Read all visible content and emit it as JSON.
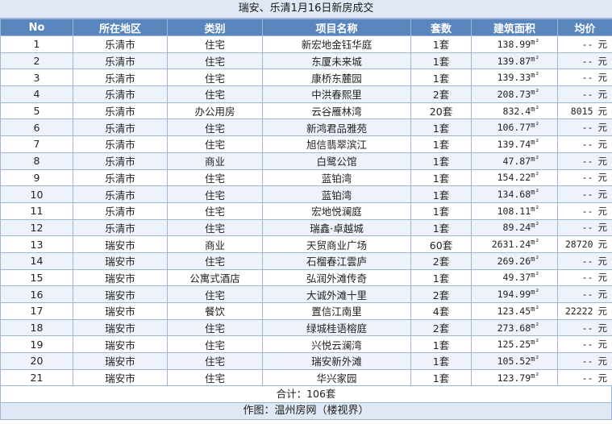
{
  "title": "瑞安、乐清1月16日新房成交",
  "headers": [
    "No",
    "所在地区",
    "类别",
    "项目名称",
    "套数",
    "建筑面积",
    "均价"
  ],
  "area_unit": "m²",
  "price_unit": "元",
  "rows": [
    {
      "no": "1",
      "region": "乐清市",
      "type": "住宅",
      "project": "新宏地金钰华庭",
      "units": "1套",
      "area": "138.99",
      "price": "--"
    },
    {
      "no": "2",
      "region": "乐清市",
      "type": "住宅",
      "project": "东厦未来城",
      "units": "1套",
      "area": "139.87",
      "price": "--"
    },
    {
      "no": "3",
      "region": "乐清市",
      "type": "住宅",
      "project": "康桥东麓园",
      "units": "1套",
      "area": "139.33",
      "price": "--"
    },
    {
      "no": "4",
      "region": "乐清市",
      "type": "住宅",
      "project": "中洪春熙里",
      "units": "2套",
      "area": "208.73",
      "price": "--"
    },
    {
      "no": "5",
      "region": "乐清市",
      "type": "办公用房",
      "project": "云谷雁林湾",
      "units": "20套",
      "area": "832.4",
      "price": "8015"
    },
    {
      "no": "6",
      "region": "乐清市",
      "type": "住宅",
      "project": "新鸿君品雅苑",
      "units": "1套",
      "area": "106.77",
      "price": "--"
    },
    {
      "no": "7",
      "region": "乐清市",
      "type": "住宅",
      "project": "旭信翡翠滨江",
      "units": "1套",
      "area": "139.74",
      "price": "--"
    },
    {
      "no": "8",
      "region": "乐清市",
      "type": "商业",
      "project": "白鹭公馆",
      "units": "1套",
      "area": "47.87",
      "price": "--"
    },
    {
      "no": "9",
      "region": "乐清市",
      "type": "住宅",
      "project": "蓝铂湾",
      "units": "1套",
      "area": "154.22",
      "price": "--"
    },
    {
      "no": "10",
      "region": "乐清市",
      "type": "住宅",
      "project": "蓝铂湾",
      "units": "1套",
      "area": "134.68",
      "price": "--"
    },
    {
      "no": "11",
      "region": "乐清市",
      "type": "住宅",
      "project": "宏地悦澜庭",
      "units": "1套",
      "area": "108.11",
      "price": "--"
    },
    {
      "no": "12",
      "region": "乐清市",
      "type": "住宅",
      "project": "瑞鑫·卓越城",
      "units": "1套",
      "area": "89.24",
      "price": "--"
    },
    {
      "no": "13",
      "region": "瑞安市",
      "type": "商业",
      "project": "天贸商业广场",
      "units": "60套",
      "area": "2631.24",
      "price": "28720"
    },
    {
      "no": "14",
      "region": "瑞安市",
      "type": "住宅",
      "project": "石榴春江雲庐",
      "units": "2套",
      "area": "269.26",
      "price": "--"
    },
    {
      "no": "15",
      "region": "瑞安市",
      "type": "公寓式酒店",
      "project": "弘润外滩传奇",
      "units": "1套",
      "area": "49.37",
      "price": "--"
    },
    {
      "no": "16",
      "region": "瑞安市",
      "type": "住宅",
      "project": "大诚外滩十里",
      "units": "2套",
      "area": "194.99",
      "price": "--"
    },
    {
      "no": "17",
      "region": "瑞安市",
      "type": "餐饮",
      "project": "置信江南里",
      "units": "4套",
      "area": "123.45",
      "price": "22222"
    },
    {
      "no": "18",
      "region": "瑞安市",
      "type": "住宅",
      "project": "绿城桂语榕庭",
      "units": "2套",
      "area": "273.68",
      "price": "--"
    },
    {
      "no": "19",
      "region": "瑞安市",
      "type": "住宅",
      "project": "兴悦云澜湾",
      "units": "1套",
      "area": "125.25",
      "price": "--"
    },
    {
      "no": "20",
      "region": "瑞安市",
      "type": "住宅",
      "project": "瑞安新外滩",
      "units": "1套",
      "area": "105.52",
      "price": "--"
    },
    {
      "no": "21",
      "region": "瑞安市",
      "type": "住宅",
      "project": "华兴家园",
      "units": "1套",
      "area": "123.79",
      "price": "--"
    }
  ],
  "total": "合计：106套",
  "credit": "作图：温州房网（楼视界）"
}
